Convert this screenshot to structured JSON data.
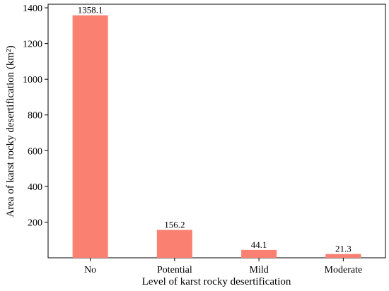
{
  "chart_data": {
    "type": "bar",
    "title": "",
    "xlabel": "Level of karst rocky desertification",
    "ylabel": "Area of karst rocky desertification (km²)",
    "categories": [
      "No",
      "Potential",
      "Mild",
      "Moderate"
    ],
    "values": [
      1358.1,
      156.2,
      44.1,
      21.3
    ],
    "data_labels": [
      "1358.1",
      "156.2",
      "44.1",
      "21.3"
    ],
    "ylim": [
      0,
      1420
    ],
    "yticks": [
      200,
      400,
      600,
      800,
      1000,
      1200,
      1400
    ],
    "grid": false,
    "legend": "none",
    "bar_color": "#fa8072"
  }
}
